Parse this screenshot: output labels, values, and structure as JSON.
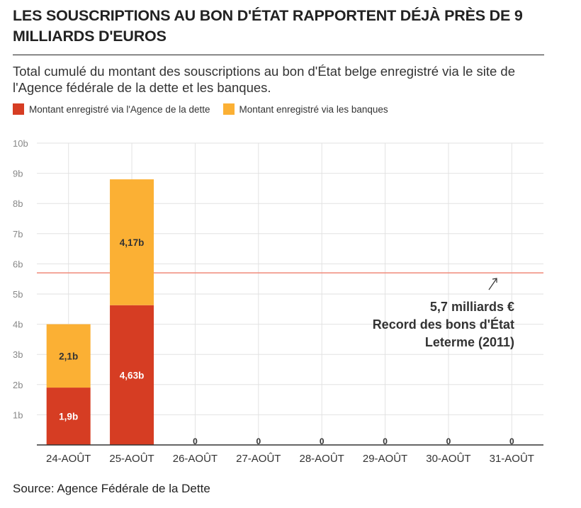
{
  "title": "LES SOUSCRIPTIONS AU BON D'ÉTAT RAPPORTENT DÉJÀ PRÈS DE 9 MILLIARDS D'EUROS",
  "subtitle": "Total cumulé du montant des souscriptions au bon d'État belge enregistré via le site de l'Agence fédérale de la dette et les banques.",
  "source": "Source: Agence Fédérale de la Dette",
  "chart_data": {
    "type": "bar",
    "stacked": true,
    "categories": [
      "24-AOÛT",
      "25-AOÛT",
      "26-AOÛT",
      "27-AOÛT",
      "28-AOÛT",
      "29-AOÛT",
      "30-AOÛT",
      "31-AOÛT"
    ],
    "series": [
      {
        "name": "Montant enregistré via l'Agence de la dette",
        "color": "#d63d23",
        "values": [
          1.9,
          4.63,
          0,
          0,
          0,
          0,
          0,
          0
        ],
        "labels": [
          "1,9b",
          "4,63b",
          "",
          "",
          "",
          "",
          "",
          ""
        ]
      },
      {
        "name": "Montant enregistré via les banques",
        "color": "#fbb034",
        "values": [
          2.1,
          4.17,
          0,
          0,
          0,
          0,
          0,
          0
        ],
        "labels": [
          "2,1b",
          "4,17b",
          "",
          "",
          "",
          "",
          "",
          ""
        ]
      }
    ],
    "total_labels": [
      "",
      "",
      "0",
      "0",
      "0",
      "0",
      "0",
      "0"
    ],
    "ylim": [
      0,
      10
    ],
    "yticks": [
      0,
      1,
      2,
      3,
      4,
      5,
      6,
      7,
      8,
      9,
      10
    ],
    "ytick_labels": [
      "",
      "1b",
      "2b",
      "3b",
      "4b",
      "5b",
      "6b",
      "7b",
      "8b",
      "9b",
      "10b"
    ],
    "grid": true,
    "legend_position": "top-left",
    "reference_line": {
      "value": 5.7,
      "color": "#f08a7a"
    },
    "annotation": [
      "5,7 milliards €",
      "Record des bons d'État",
      "Leterme (2011)"
    ]
  }
}
